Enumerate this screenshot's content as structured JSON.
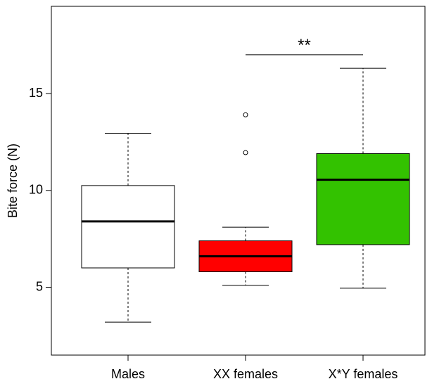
{
  "chart_data": {
    "type": "boxplot",
    "ylabel": "Bite force (N)",
    "xlabel": "",
    "ylim": [
      1.5,
      19.5
    ],
    "yticks": [
      5,
      10,
      15
    ],
    "grid": false,
    "groups": [
      {
        "label": "Males",
        "color": "#ffffff",
        "whisker_low": 3.2,
        "q1": 6.0,
        "median": 8.4,
        "q3": 10.25,
        "whisker_high": 12.95,
        "outliers": []
      },
      {
        "label": "XX females",
        "color": "#ff0000",
        "whisker_low": 5.1,
        "q1": 5.8,
        "median": 6.6,
        "q3": 7.4,
        "whisker_high": 8.1,
        "outliers": [
          11.95,
          13.9
        ]
      },
      {
        "label": "X*Y females",
        "color": "#33c200",
        "whisker_low": 4.95,
        "q1": 7.2,
        "median": 10.55,
        "q3": 11.9,
        "whisker_high": 16.3,
        "outliers": []
      }
    ],
    "annotations": [
      {
        "text": "**",
        "from_group": 1,
        "to_group": 2,
        "y": 17.0
      }
    ]
  }
}
